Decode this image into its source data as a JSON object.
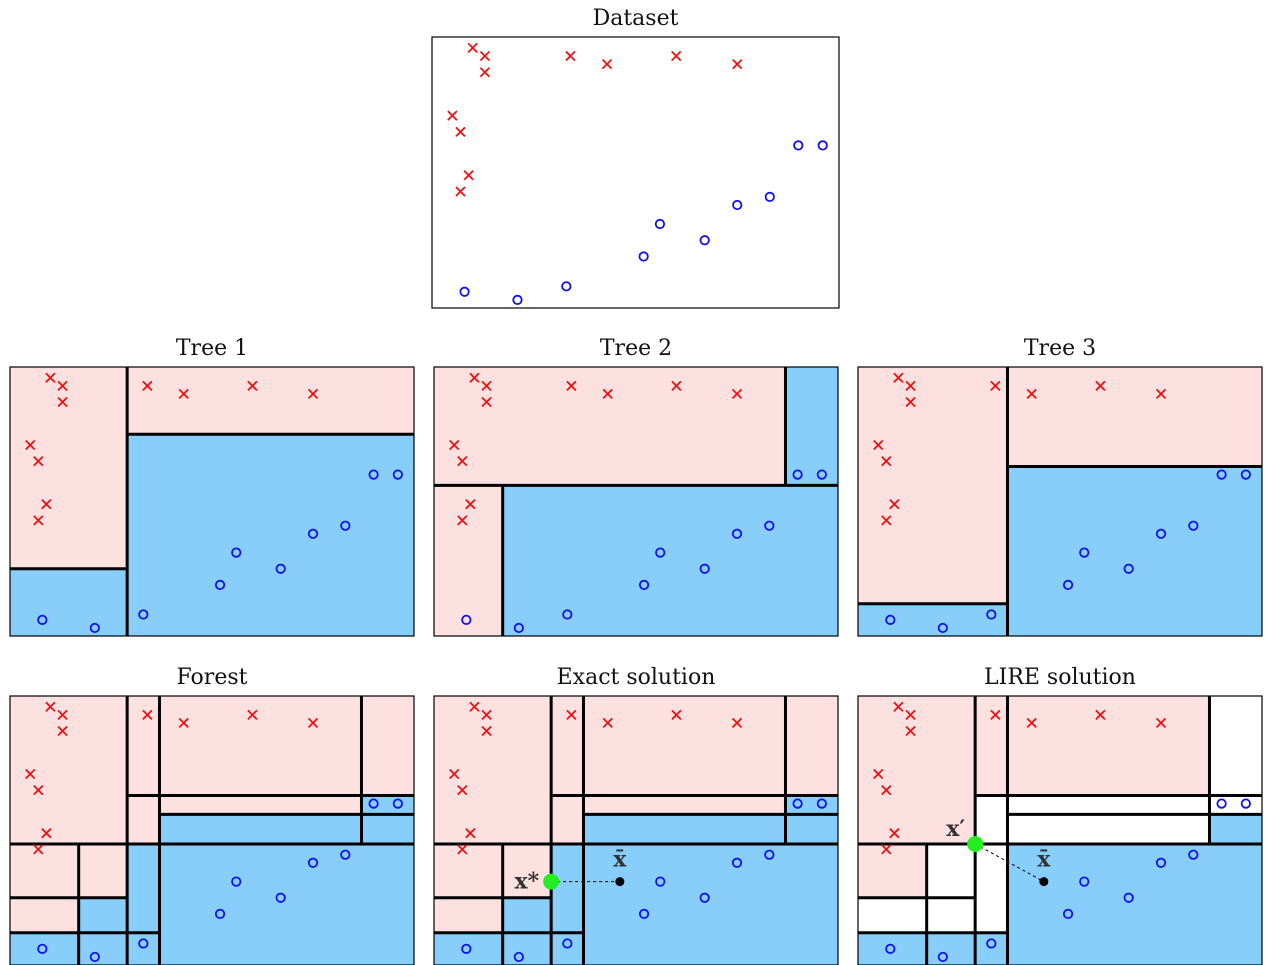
{
  "colors": {
    "red_region": "#fde0e0",
    "blue_region": "#87cefa",
    "white_region": "#ffffff",
    "cross": "#ee1111",
    "circle": "#1111ee",
    "split_line": "#000000",
    "highlight_point": "#22ee22"
  },
  "points": {
    "crosses": [
      [
        0.1,
        0.96
      ],
      [
        0.13,
        0.93
      ],
      [
        0.13,
        0.87
      ],
      [
        0.34,
        0.93
      ],
      [
        0.43,
        0.9
      ],
      [
        0.6,
        0.93
      ],
      [
        0.75,
        0.9
      ],
      [
        0.05,
        0.71
      ],
      [
        0.07,
        0.65
      ],
      [
        0.09,
        0.49
      ],
      [
        0.07,
        0.43
      ]
    ],
    "circles": [
      [
        0.08,
        0.06
      ],
      [
        0.21,
        0.03
      ],
      [
        0.33,
        0.08
      ],
      [
        0.52,
        0.19
      ],
      [
        0.56,
        0.31
      ],
      [
        0.67,
        0.25
      ],
      [
        0.75,
        0.38
      ],
      [
        0.83,
        0.41
      ],
      [
        0.9,
        0.6
      ],
      [
        0.96,
        0.6
      ]
    ]
  },
  "panels": [
    {
      "id": "dataset",
      "title": "Dataset",
      "regions": [],
      "splits": [],
      "markers": []
    },
    {
      "id": "tree1",
      "title": "Tree 1",
      "regions": [
        [
          0,
          0.29,
          0.25,
          1,
          "red"
        ],
        [
          0.29,
          1,
          0.75,
          1,
          "red"
        ],
        [
          0,
          0.29,
          0,
          0.25,
          "blue"
        ],
        [
          0.29,
          1,
          0,
          0.75,
          "blue"
        ]
      ],
      "splits": [
        [
          0.29,
          0,
          0.29,
          1
        ],
        [
          0,
          0.25,
          0.29,
          0.25
        ],
        [
          0.29,
          0.75,
          1,
          0.75
        ]
      ],
      "markers": []
    },
    {
      "id": "tree2",
      "title": "Tree 2",
      "regions": [
        [
          0,
          0.87,
          0.56,
          1,
          "red"
        ],
        [
          0.87,
          1,
          0.56,
          1,
          "blue"
        ],
        [
          0,
          0.17,
          0,
          0.56,
          "red"
        ],
        [
          0.17,
          1,
          0,
          0.56,
          "blue"
        ]
      ],
      "splits": [
        [
          0,
          0.56,
          1,
          0.56
        ],
        [
          0.87,
          0.56,
          0.87,
          1
        ],
        [
          0.17,
          0,
          0.17,
          0.56
        ]
      ],
      "markers": []
    },
    {
      "id": "tree3",
      "title": "Tree 3",
      "regions": [
        [
          0,
          0.37,
          0.12,
          1,
          "red"
        ],
        [
          0,
          0.37,
          0,
          0.12,
          "blue"
        ],
        [
          0.37,
          1,
          0.63,
          1,
          "red"
        ],
        [
          0.37,
          1,
          0,
          0.63,
          "blue"
        ]
      ],
      "splits": [
        [
          0.37,
          0,
          0.37,
          1
        ],
        [
          0,
          0.12,
          0.37,
          0.12
        ],
        [
          0.37,
          0.63,
          1,
          0.63
        ]
      ],
      "markers": []
    },
    {
      "id": "forest",
      "title": "Forest",
      "regions": [
        [
          0,
          0.29,
          0.45,
          1,
          "red"
        ],
        [
          0.29,
          0.37,
          0.45,
          1,
          "red"
        ],
        [
          0.37,
          0.87,
          0.63,
          1,
          "red"
        ],
        [
          0.87,
          1,
          0.63,
          1,
          "red"
        ],
        [
          0.37,
          0.87,
          0.56,
          0.63,
          "red"
        ],
        [
          0.87,
          1,
          0.45,
          0.63,
          "blue"
        ],
        [
          0.37,
          0.87,
          0.45,
          0.56,
          "blue"
        ],
        [
          0,
          0.17,
          0.12,
          0.45,
          "red"
        ],
        [
          0.17,
          0.29,
          0.25,
          0.45,
          "red"
        ],
        [
          0.17,
          0.29,
          0.12,
          0.25,
          "blue"
        ],
        [
          0.29,
          0.37,
          0.12,
          0.45,
          "blue"
        ],
        [
          0.37,
          1,
          0,
          0.45,
          "blue"
        ],
        [
          0,
          0.37,
          0,
          0.12,
          "blue"
        ]
      ],
      "splits": [
        [
          0.29,
          0,
          0.29,
          1
        ],
        [
          0.37,
          0,
          0.37,
          1
        ],
        [
          0.87,
          0.45,
          0.87,
          1
        ],
        [
          0.17,
          0,
          0.17,
          0.45
        ],
        [
          0,
          0.45,
          1,
          0.45
        ],
        [
          0.29,
          0.63,
          1,
          0.63
        ],
        [
          0.37,
          0.56,
          1,
          0.56
        ],
        [
          0,
          0.25,
          0.29,
          0.25
        ],
        [
          0,
          0.12,
          0.37,
          0.12
        ]
      ],
      "markers": []
    },
    {
      "id": "exact",
      "title": "Exact solution",
      "regions": [
        [
          0,
          0.29,
          0.45,
          1,
          "red"
        ],
        [
          0.29,
          0.37,
          0.45,
          1,
          "red"
        ],
        [
          0.37,
          0.87,
          0.63,
          1,
          "red"
        ],
        [
          0.87,
          1,
          0.63,
          1,
          "red"
        ],
        [
          0.37,
          0.87,
          0.56,
          0.63,
          "red"
        ],
        [
          0.87,
          1,
          0.45,
          0.63,
          "blue"
        ],
        [
          0.37,
          0.87,
          0.45,
          0.56,
          "blue"
        ],
        [
          0,
          0.17,
          0.12,
          0.45,
          "red"
        ],
        [
          0.17,
          0.29,
          0.25,
          0.45,
          "red"
        ],
        [
          0.17,
          0.29,
          0.12,
          0.25,
          "blue"
        ],
        [
          0.29,
          0.37,
          0.12,
          0.45,
          "blue"
        ],
        [
          0.37,
          1,
          0,
          0.45,
          "blue"
        ],
        [
          0,
          0.37,
          0,
          0.12,
          "blue"
        ]
      ],
      "splits": [
        [
          0.29,
          0,
          0.29,
          1
        ],
        [
          0.37,
          0,
          0.37,
          1
        ],
        [
          0.87,
          0.45,
          0.87,
          1
        ],
        [
          0.17,
          0,
          0.17,
          0.45
        ],
        [
          0,
          0.45,
          1,
          0.45
        ],
        [
          0.29,
          0.63,
          1,
          0.63
        ],
        [
          0.37,
          0.56,
          1,
          0.56
        ],
        [
          0,
          0.25,
          0.29,
          0.25
        ],
        [
          0,
          0.12,
          0.37,
          0.12
        ]
      ],
      "markers": [
        {
          "from": [
            0.29,
            0.31
          ],
          "to": [
            0.46,
            0.31
          ],
          "from_label": "x*",
          "to_label": "x̄"
        }
      ]
    },
    {
      "id": "lire",
      "title": "LIRE solution",
      "regions": [
        [
          0,
          0.29,
          0.45,
          1,
          "red"
        ],
        [
          0.29,
          0.37,
          0.63,
          1,
          "red"
        ],
        [
          0.37,
          0.87,
          0.63,
          1,
          "red"
        ],
        [
          0.87,
          1,
          0.63,
          1,
          "white"
        ],
        [
          0.29,
          0.37,
          0.45,
          0.63,
          "white"
        ],
        [
          0.37,
          0.87,
          0.56,
          0.63,
          "white"
        ],
        [
          0.87,
          1,
          0.56,
          0.63,
          "white"
        ],
        [
          0.37,
          0.87,
          0.45,
          0.56,
          "white"
        ],
        [
          0.87,
          1,
          0.45,
          0.56,
          "blue"
        ],
        [
          0,
          0.17,
          0.25,
          0.45,
          "red"
        ],
        [
          0.17,
          0.29,
          0.25,
          0.45,
          "white"
        ],
        [
          0,
          0.17,
          0.12,
          0.25,
          "white"
        ],
        [
          0.17,
          0.29,
          0.12,
          0.25,
          "white"
        ],
        [
          0.29,
          0.37,
          0.12,
          0.45,
          "white"
        ],
        [
          0.37,
          1,
          0,
          0.45,
          "blue"
        ],
        [
          0,
          0.37,
          0,
          0.12,
          "blue"
        ]
      ],
      "splits": [
        [
          0.29,
          0,
          0.29,
          1
        ],
        [
          0.37,
          0,
          0.37,
          1
        ],
        [
          0.87,
          0.45,
          0.87,
          1
        ],
        [
          0.17,
          0,
          0.17,
          0.45
        ],
        [
          0,
          0.45,
          1,
          0.45
        ],
        [
          0.29,
          0.63,
          1,
          0.63
        ],
        [
          0.37,
          0.56,
          1,
          0.56
        ],
        [
          0,
          0.25,
          0.29,
          0.25
        ],
        [
          0,
          0.12,
          0.37,
          0.12
        ]
      ],
      "markers": [
        {
          "from": [
            0.29,
            0.45
          ],
          "to": [
            0.46,
            0.31
          ],
          "from_label": "x′",
          "to_label": "x̄"
        }
      ]
    }
  ]
}
